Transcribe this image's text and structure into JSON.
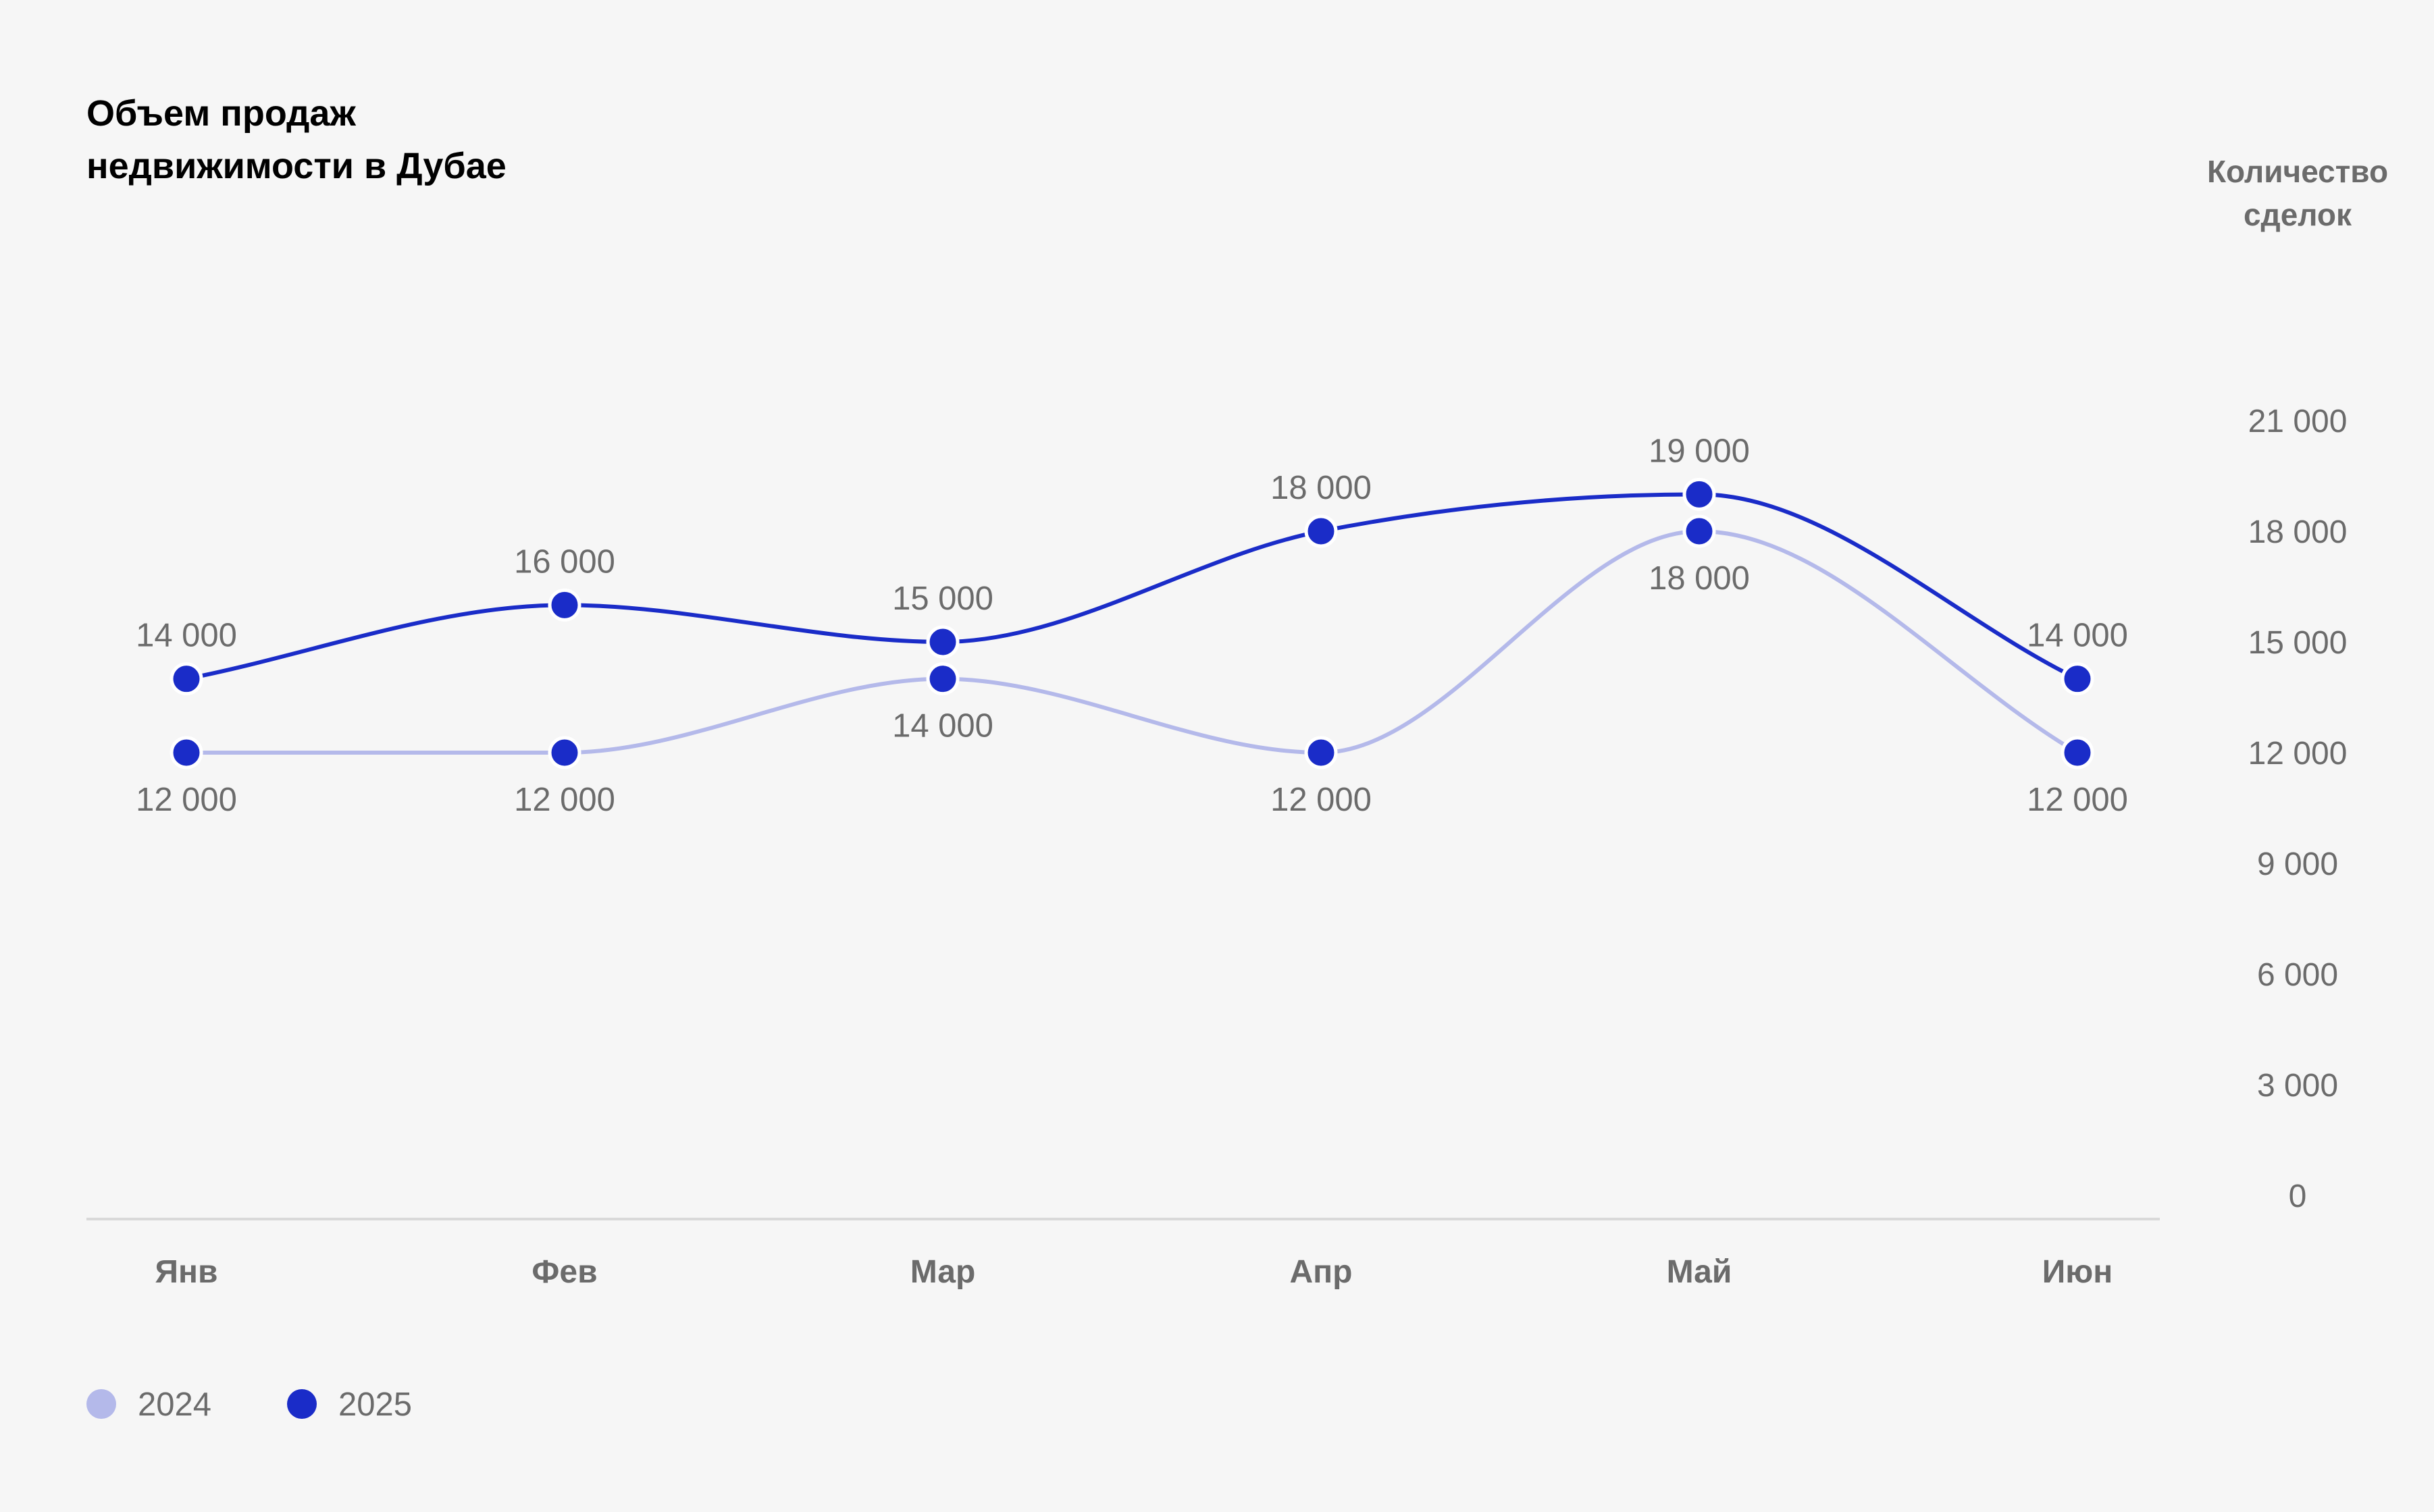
{
  "colors": {
    "background": "#f6f6f6",
    "series_2024": "#b4b9ea",
    "series_2025": "#1a2cc8",
    "text_muted": "#6b6b6b",
    "axis_line": "#d9d9d9"
  },
  "chart_data": {
    "type": "line",
    "title_lines": [
      "Объем продаж",
      "недвижимости в Дубае"
    ],
    "ylabel_lines": [
      "Количество",
      "сделок"
    ],
    "categories": [
      "Янв",
      "Фев",
      "Мар",
      "Апр",
      "Май",
      "Июн"
    ],
    "ylim": [
      0,
      21000
    ],
    "yticks": [
      0,
      3000,
      6000,
      9000,
      12000,
      15000,
      18000,
      21000
    ],
    "ytick_labels": [
      "0",
      "3 000",
      "6 000",
      "9 000",
      "12 000",
      "15 000",
      "18 000",
      "21 000"
    ],
    "y_axis_side": "right",
    "grid": false,
    "legend_position": "bottom-left",
    "smooth": true,
    "series": [
      {
        "name": "2024",
        "color": "#b4b9ea",
        "values": [
          12000,
          12000,
          14000,
          12000,
          18000,
          12000
        ],
        "labels": [
          "12 000",
          "12 000",
          "14 000",
          "12 000",
          "18 000",
          "12 000"
        ]
      },
      {
        "name": "2025",
        "color": "#1a2cc8",
        "values": [
          14000,
          16000,
          15000,
          18000,
          19000,
          14000
        ],
        "labels": [
          "14 000",
          "16 000",
          "15 000",
          "18 000",
          "19 000",
          "14 000"
        ]
      }
    ]
  }
}
